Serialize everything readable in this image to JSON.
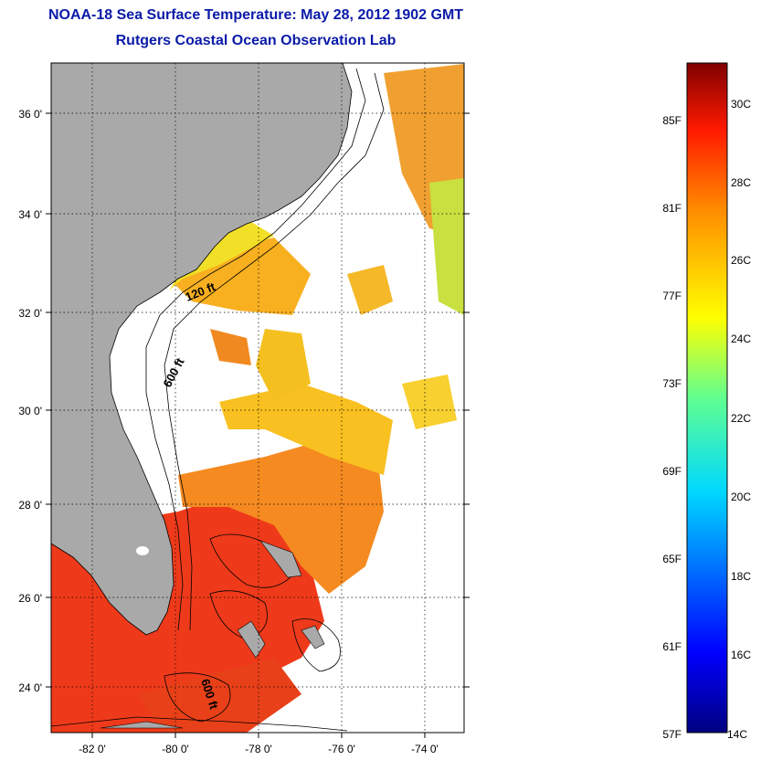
{
  "header": {
    "title": "NOAA-18 Sea Surface Temperature:  May 28, 2012 1902 GMT",
    "subtitle": "Rutgers Coastal Ocean Observation Lab"
  },
  "map": {
    "lat_labels": [
      "36 0'",
      "34 0'",
      "32 0'",
      "30 0'",
      "28 0'",
      "26 0'",
      "24 0'"
    ],
    "lon_labels": [
      "-82 0'",
      "-80 0'",
      "-78 0'",
      "-76 0'",
      "-74 0'"
    ],
    "contour_labels": [
      "120 ft",
      "600 ft",
      "600 ft"
    ],
    "colors": {
      "land": "#a9a9a9",
      "warm": "#ee3a1a",
      "mid": "#f8b020",
      "cool": "#f0e030"
    }
  },
  "colorbar": {
    "fahrenheit_labels": [
      "85F",
      "81F",
      "77F",
      "73F",
      "69F",
      "65F",
      "61F",
      "57F"
    ],
    "celsius_labels": [
      "30C",
      "28C",
      "26C",
      "24C",
      "22C",
      "20C",
      "18C",
      "16C",
      "14C"
    ]
  }
}
